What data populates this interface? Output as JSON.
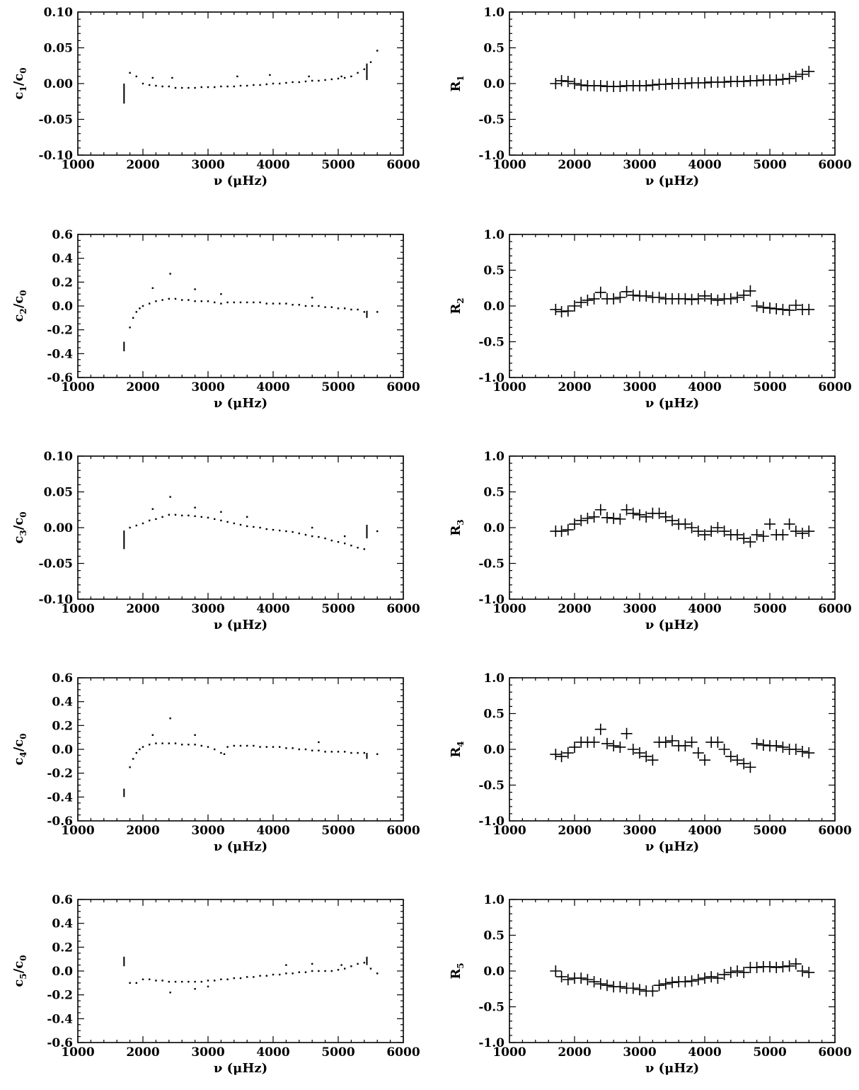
{
  "figure": {
    "layout": "5 rows x 2 columns of scatter panels"
  },
  "chart_data": [
    {
      "type": "scatter",
      "id": "c1",
      "ylabel_main": "c",
      "ylabel_sub": "1",
      "ylabel_rest": "/c",
      "ylabel_sub2": "0",
      "xlabel": "ν (μHz)",
      "xlim": [
        1000,
        6000
      ],
      "ylim": [
        -0.1,
        0.1
      ],
      "xticks": [
        "1000",
        "2000",
        "3000",
        "4000",
        "5000",
        "6000"
      ],
      "yticks": [
        -0.1,
        -0.05,
        0.0,
        0.05,
        0.1
      ],
      "ytick_labels": [
        "-0.10",
        "-0.05",
        "0.00",
        "0.05",
        "0.10"
      ],
      "marker": "dot",
      "x": [
        1800,
        1900,
        2000,
        2100,
        2200,
        2300,
        2400,
        2500,
        2600,
        2700,
        2800,
        2900,
        3000,
        3100,
        3200,
        3300,
        3400,
        3500,
        3600,
        3700,
        3800,
        3900,
        4000,
        4100,
        4200,
        4300,
        4400,
        4500,
        4600,
        4700,
        4800,
        4900,
        5000,
        5100,
        5200,
        5300,
        5400,
        5500,
        5600,
        2150,
        2450,
        3450,
        3950,
        4550,
        5050
      ],
      "y": [
        0.015,
        0.01,
        0.0,
        -0.002,
        -0.003,
        -0.004,
        -0.004,
        -0.006,
        -0.006,
        -0.006,
        -0.006,
        -0.005,
        -0.005,
        -0.005,
        -0.004,
        -0.004,
        -0.004,
        -0.003,
        -0.003,
        -0.002,
        -0.002,
        -0.001,
        0.0,
        0.0,
        0.001,
        0.002,
        0.002,
        0.003,
        0.004,
        0.004,
        0.005,
        0.006,
        0.007,
        0.008,
        0.01,
        0.015,
        0.02,
        0.03,
        0.046,
        0.008,
        0.008,
        0.01,
        0.012,
        0.01,
        0.01
      ],
      "bars": [
        {
          "x": 1710,
          "y0": -0.028,
          "y1": 0.0
        },
        {
          "x": 5440,
          "y0": 0.005,
          "y1": 0.028
        }
      ]
    },
    {
      "type": "scatter",
      "id": "R1",
      "ylabel_main": "R",
      "ylabel_sub": "1",
      "xlabel": "ν (μHz)",
      "xlim": [
        1000,
        6000
      ],
      "ylim": [
        -1.0,
        1.0
      ],
      "xticks": [
        "1000",
        "2000",
        "3000",
        "4000",
        "5000",
        "6000"
      ],
      "yticks": [
        -1.0,
        -0.5,
        0.0,
        0.5,
        1.0
      ],
      "ytick_labels": [
        "-1.0",
        "-0.5",
        "0.0",
        "0.5",
        "1.0"
      ],
      "marker": "plus",
      "x": [
        1710,
        1800,
        1900,
        2000,
        2100,
        2200,
        2300,
        2400,
        2500,
        2600,
        2700,
        2800,
        2900,
        3000,
        3100,
        3200,
        3300,
        3400,
        3500,
        3600,
        3700,
        3800,
        3900,
        4000,
        4100,
        4200,
        4300,
        4400,
        4500,
        4600,
        4700,
        4800,
        4900,
        5000,
        5100,
        5200,
        5300,
        5400,
        5500,
        5600
      ],
      "y": [
        0.0,
        0.04,
        0.03,
        0.0,
        -0.02,
        -0.03,
        -0.03,
        -0.03,
        -0.04,
        -0.04,
        -0.04,
        -0.03,
        -0.03,
        -0.03,
        -0.03,
        -0.02,
        -0.01,
        -0.01,
        0.0,
        0.0,
        0.0,
        0.01,
        0.01,
        0.01,
        0.02,
        0.02,
        0.02,
        0.03,
        0.03,
        0.03,
        0.04,
        0.04,
        0.05,
        0.05,
        0.05,
        0.06,
        0.07,
        0.1,
        0.13,
        0.17
      ]
    },
    {
      "type": "scatter",
      "id": "c2",
      "ylabel_main": "c",
      "ylabel_sub": "2",
      "ylabel_rest": "/c",
      "ylabel_sub2": "0",
      "xlabel": "ν (μHz)",
      "xlim": [
        1000,
        6000
      ],
      "ylim": [
        -0.6,
        0.6
      ],
      "xticks": [
        "1000",
        "2000",
        "3000",
        "4000",
        "5000",
        "6000"
      ],
      "yticks": [
        -0.6,
        -0.4,
        -0.2,
        0.0,
        0.2,
        0.4,
        0.6
      ],
      "ytick_labels": [
        "-0.6",
        "-0.4",
        "-0.2",
        "0.0",
        "0.2",
        "0.4",
        "0.6"
      ],
      "marker": "dot",
      "x": [
        1800,
        1850,
        1900,
        1950,
        2000,
        2100,
        2200,
        2300,
        2400,
        2500,
        2600,
        2700,
        2800,
        2900,
        3000,
        3100,
        3200,
        3300,
        3400,
        3500,
        3600,
        3700,
        3800,
        3900,
        4000,
        4100,
        4200,
        4300,
        4400,
        4500,
        4600,
        4700,
        4800,
        4900,
        5000,
        5100,
        5200,
        5300,
        5400,
        5600,
        2150,
        2420,
        2800,
        3200,
        4600
      ],
      "y": [
        -0.18,
        -0.1,
        -0.05,
        -0.02,
        0.0,
        0.02,
        0.04,
        0.05,
        0.06,
        0.06,
        0.05,
        0.05,
        0.04,
        0.04,
        0.04,
        0.03,
        0.02,
        0.03,
        0.03,
        0.03,
        0.03,
        0.03,
        0.03,
        0.02,
        0.02,
        0.02,
        0.02,
        0.01,
        0.01,
        0.0,
        0.0,
        0.0,
        -0.01,
        -0.01,
        -0.02,
        -0.02,
        -0.03,
        -0.03,
        -0.05,
        -0.05,
        0.15,
        0.27,
        0.14,
        0.1,
        0.07
      ],
      "bars": [
        {
          "x": 1710,
          "y0": -0.38,
          "y1": -0.3
        },
        {
          "x": 5440,
          "y0": -0.1,
          "y1": -0.04
        }
      ]
    },
    {
      "type": "scatter",
      "id": "R2",
      "ylabel_main": "R",
      "ylabel_sub": "2",
      "xlabel": "ν (μHz)",
      "xlim": [
        1000,
        6000
      ],
      "ylim": [
        -1.0,
        1.0
      ],
      "xticks": [
        "1000",
        "2000",
        "3000",
        "4000",
        "5000",
        "6000"
      ],
      "yticks": [
        -1.0,
        -0.5,
        0.0,
        0.5,
        1.0
      ],
      "ytick_labels": [
        "-1.0",
        "-0.5",
        "0.0",
        "0.5",
        "1.0"
      ],
      "marker": "plus",
      "x": [
        1710,
        1800,
        1900,
        2000,
        2100,
        2200,
        2300,
        2400,
        2500,
        2600,
        2700,
        2800,
        2900,
        3000,
        3100,
        3200,
        3300,
        3400,
        3500,
        3600,
        3700,
        3800,
        3900,
        4000,
        4100,
        4200,
        4300,
        4400,
        4500,
        4600,
        4700,
        4800,
        4900,
        5000,
        5100,
        5200,
        5300,
        5400,
        5500,
        5600
      ],
      "y": [
        -0.05,
        -0.08,
        -0.07,
        0.0,
        0.05,
        0.08,
        0.1,
        0.19,
        0.1,
        0.1,
        0.12,
        0.2,
        0.15,
        0.14,
        0.14,
        0.12,
        0.12,
        0.1,
        0.1,
        0.1,
        0.1,
        0.09,
        0.1,
        0.14,
        0.1,
        0.08,
        0.1,
        0.1,
        0.12,
        0.15,
        0.21,
        0.0,
        -0.02,
        -0.03,
        -0.04,
        -0.05,
        -0.06,
        0.01,
        -0.05,
        -0.05
      ]
    },
    {
      "type": "scatter",
      "id": "c3",
      "ylabel_main": "c",
      "ylabel_sub": "3",
      "ylabel_rest": "/c",
      "ylabel_sub2": "0",
      "xlabel": "ν (μHz)",
      "xlim": [
        1000,
        6000
      ],
      "ylim": [
        -0.1,
        0.1
      ],
      "xticks": [
        "1000",
        "2000",
        "3000",
        "4000",
        "5000",
        "6000"
      ],
      "yticks": [
        -0.1,
        -0.05,
        0.0,
        0.05,
        0.1
      ],
      "ytick_labels": [
        "-0.10",
        "-0.05",
        "0.00",
        "0.05",
        "0.10"
      ],
      "marker": "dot",
      "x": [
        1800,
        1900,
        2000,
        2100,
        2200,
        2300,
        2400,
        2500,
        2600,
        2700,
        2800,
        2900,
        3000,
        3100,
        3200,
        3300,
        3400,
        3500,
        3600,
        3700,
        3800,
        3900,
        4000,
        4100,
        4200,
        4300,
        4400,
        4500,
        4600,
        4700,
        4800,
        4900,
        5000,
        5100,
        5200,
        5300,
        5400,
        5600,
        2150,
        2420,
        2800,
        3200,
        3600,
        4600,
        5100
      ],
      "y": [
        0.0,
        0.003,
        0.006,
        0.01,
        0.012,
        0.015,
        0.018,
        0.018,
        0.017,
        0.017,
        0.016,
        0.015,
        0.014,
        0.012,
        0.01,
        0.008,
        0.006,
        0.004,
        0.002,
        0.001,
        0.0,
        -0.002,
        -0.003,
        -0.004,
        -0.005,
        -0.006,
        -0.008,
        -0.01,
        -0.012,
        -0.013,
        -0.015,
        -0.018,
        -0.02,
        -0.022,
        -0.025,
        -0.028,
        -0.03,
        -0.005,
        0.026,
        0.043,
        0.028,
        0.022,
        0.015,
        0.0,
        -0.012
      ],
      "bars": [
        {
          "x": 1710,
          "y0": -0.03,
          "y1": -0.004
        },
        {
          "x": 5440,
          "y0": -0.015,
          "y1": 0.004
        }
      ]
    },
    {
      "type": "scatter",
      "id": "R3",
      "ylabel_main": "R",
      "ylabel_sub": "3",
      "xlabel": "ν (μHz)",
      "xlim": [
        1000,
        6000
      ],
      "ylim": [
        -1.0,
        1.0
      ],
      "xticks": [
        "1000",
        "2000",
        "3000",
        "4000",
        "5000",
        "6000"
      ],
      "yticks": [
        -1.0,
        -0.5,
        0.0,
        0.5,
        1.0
      ],
      "ytick_labels": [
        "-1.0",
        "-0.5",
        "0.0",
        "0.5",
        "1.0"
      ],
      "marker": "plus",
      "x": [
        1710,
        1800,
        1900,
        2000,
        2100,
        2200,
        2300,
        2400,
        2500,
        2600,
        2700,
        2800,
        2900,
        3000,
        3100,
        3200,
        3300,
        3400,
        3500,
        3600,
        3700,
        3800,
        3900,
        4000,
        4100,
        4200,
        4300,
        4400,
        4500,
        4600,
        4700,
        4800,
        4900,
        5000,
        5100,
        5200,
        5300,
        5400,
        5500,
        5600
      ],
      "y": [
        -0.05,
        -0.05,
        -0.03,
        0.05,
        0.1,
        0.13,
        0.15,
        0.25,
        0.14,
        0.13,
        0.12,
        0.25,
        0.2,
        0.18,
        0.15,
        0.2,
        0.2,
        0.15,
        0.1,
        0.05,
        0.05,
        0.0,
        -0.05,
        -0.1,
        -0.05,
        0.0,
        -0.05,
        -0.1,
        -0.1,
        -0.15,
        -0.2,
        -0.1,
        -0.12,
        0.05,
        -0.1,
        -0.1,
        0.05,
        -0.05,
        -0.08,
        -0.05
      ]
    },
    {
      "type": "scatter",
      "id": "c4",
      "ylabel_main": "c",
      "ylabel_sub": "4",
      "ylabel_rest": "/c",
      "ylabel_sub2": "0",
      "xlabel": "ν (μHz)",
      "xlim": [
        1000,
        6000
      ],
      "ylim": [
        -0.6,
        0.6
      ],
      "xticks": [
        "1000",
        "2000",
        "3000",
        "4000",
        "5000",
        "6000"
      ],
      "yticks": [
        -0.6,
        -0.4,
        -0.2,
        0.0,
        0.2,
        0.4,
        0.6
      ],
      "ytick_labels": [
        "-0.6",
        "-0.4",
        "-0.2",
        "0.0",
        "0.2",
        "0.4",
        "0.6"
      ],
      "marker": "dot",
      "x": [
        1800,
        1850,
        1900,
        1950,
        2000,
        2100,
        2200,
        2300,
        2400,
        2500,
        2600,
        2700,
        2800,
        2900,
        3000,
        3100,
        3200,
        3250,
        3300,
        3400,
        3500,
        3600,
        3700,
        3800,
        3900,
        4000,
        4100,
        4200,
        4300,
        4400,
        4500,
        4600,
        4700,
        4800,
        4900,
        5000,
        5100,
        5200,
        5300,
        5400,
        5600,
        2150,
        2420,
        2800,
        4700
      ],
      "y": [
        -0.15,
        -0.08,
        -0.03,
        0.0,
        0.02,
        0.04,
        0.05,
        0.05,
        0.05,
        0.05,
        0.04,
        0.04,
        0.04,
        0.03,
        0.02,
        0.0,
        -0.03,
        -0.04,
        0.02,
        0.03,
        0.03,
        0.03,
        0.03,
        0.02,
        0.02,
        0.02,
        0.02,
        0.01,
        0.01,
        0.0,
        0.0,
        -0.01,
        -0.01,
        -0.02,
        -0.02,
        -0.02,
        -0.02,
        -0.03,
        -0.03,
        -0.03,
        -0.04,
        0.12,
        0.26,
        0.12,
        0.06
      ],
      "bars": [
        {
          "x": 1710,
          "y0": -0.4,
          "y1": -0.33
        },
        {
          "x": 5440,
          "y0": -0.08,
          "y1": -0.03
        }
      ]
    },
    {
      "type": "scatter",
      "id": "R4",
      "ylabel_main": "R",
      "ylabel_sub": "4",
      "xlabel": "ν (μHz)",
      "xlim": [
        1000,
        6000
      ],
      "ylim": [
        -1.0,
        1.0
      ],
      "xticks": [
        "1000",
        "2000",
        "3000",
        "4000",
        "5000",
        "6000"
      ],
      "yticks": [
        -1.0,
        -0.5,
        0.0,
        0.5,
        1.0
      ],
      "ytick_labels": [
        "-1.0",
        "-0.5",
        "0.0",
        "0.5",
        "1.0"
      ],
      "marker": "plus",
      "x": [
        1710,
        1800,
        1900,
        2000,
        2100,
        2200,
        2300,
        2400,
        2500,
        2600,
        2700,
        2800,
        2900,
        3000,
        3100,
        3200,
        3300,
        3400,
        3500,
        3600,
        3700,
        3800,
        3900,
        4000,
        4100,
        4200,
        4300,
        4400,
        4500,
        4600,
        4700,
        4800,
        4900,
        5000,
        5100,
        5200,
        5300,
        5400,
        5500,
        5600
      ],
      "y": [
        -0.07,
        -0.1,
        -0.05,
        0.03,
        0.1,
        0.1,
        0.1,
        0.28,
        0.08,
        0.05,
        0.03,
        0.22,
        0.0,
        -0.05,
        -0.1,
        -0.15,
        0.1,
        0.1,
        0.12,
        0.05,
        0.05,
        0.1,
        -0.05,
        -0.15,
        0.1,
        0.1,
        0.0,
        -0.1,
        -0.15,
        -0.2,
        -0.25,
        0.08,
        0.06,
        0.05,
        0.05,
        0.03,
        0.0,
        0.0,
        -0.03,
        -0.05
      ]
    },
    {
      "type": "scatter",
      "id": "c5",
      "ylabel_main": "c",
      "ylabel_sub": "5",
      "ylabel_rest": "/c",
      "ylabel_sub2": "0",
      "xlabel": "ν (μHz)",
      "xlim": [
        1000,
        6000
      ],
      "ylim": [
        -0.6,
        0.6
      ],
      "xticks": [
        "1000",
        "2000",
        "3000",
        "4000",
        "5000",
        "6000"
      ],
      "yticks": [
        -0.6,
        -0.4,
        -0.2,
        0.0,
        0.2,
        0.4,
        0.6
      ],
      "ytick_labels": [
        "-0.6",
        "-0.4",
        "-0.2",
        "0.0",
        "0.2",
        "0.4",
        "0.6"
      ],
      "marker": "dot",
      "x": [
        1800,
        1900,
        2000,
        2100,
        2200,
        2300,
        2400,
        2500,
        2600,
        2700,
        2800,
        2900,
        3000,
        3100,
        3200,
        3300,
        3400,
        3500,
        3600,
        3700,
        3800,
        3900,
        4000,
        4100,
        4200,
        4300,
        4400,
        4500,
        4600,
        4700,
        4800,
        4900,
        5000,
        5100,
        5200,
        5300,
        5400,
        5500,
        5600,
        2420,
        2800,
        3000,
        4200,
        4600,
        5050
      ],
      "y": [
        -0.1,
        -0.1,
        -0.07,
        -0.07,
        -0.08,
        -0.08,
        -0.09,
        -0.09,
        -0.09,
        -0.09,
        -0.09,
        -0.09,
        -0.08,
        -0.08,
        -0.07,
        -0.07,
        -0.06,
        -0.06,
        -0.05,
        -0.05,
        -0.04,
        -0.04,
        -0.03,
        -0.03,
        -0.02,
        -0.02,
        -0.01,
        -0.01,
        0.0,
        0.0,
        0.0,
        0.0,
        0.01,
        0.02,
        0.04,
        0.06,
        0.07,
        0.02,
        -0.02,
        -0.18,
        -0.15,
        -0.13,
        0.05,
        0.06,
        0.05
      ],
      "bars": [
        {
          "x": 1710,
          "y0": 0.04,
          "y1": 0.12
        },
        {
          "x": 5440,
          "y0": 0.05,
          "y1": 0.12
        }
      ]
    },
    {
      "type": "scatter",
      "id": "R5",
      "ylabel_main": "R",
      "ylabel_sub": "5",
      "xlabel": "ν (μHz)",
      "xlim": [
        1000,
        6000
      ],
      "ylim": [
        -1.0,
        1.0
      ],
      "xticks": [
        "1000",
        "2000",
        "3000",
        "4000",
        "5000",
        "6000"
      ],
      "yticks": [
        -1.0,
        -0.5,
        0.0,
        0.5,
        1.0
      ],
      "ytick_labels": [
        "-1.0",
        "-0.5",
        "0.0",
        "0.5",
        "1.0"
      ],
      "marker": "plus",
      "x": [
        1710,
        1800,
        1900,
        2000,
        2100,
        2200,
        2300,
        2400,
        2500,
        2600,
        2700,
        2800,
        2900,
        3000,
        3100,
        3200,
        3300,
        3400,
        3500,
        3600,
        3700,
        3800,
        3900,
        4000,
        4100,
        4200,
        4300,
        4400,
        4500,
        4600,
        4700,
        4800,
        4900,
        5000,
        5100,
        5200,
        5300,
        5400,
        5500,
        5600
      ],
      "y": [
        0.0,
        -0.08,
        -0.12,
        -0.1,
        -0.1,
        -0.12,
        -0.15,
        -0.18,
        -0.2,
        -0.22,
        -0.22,
        -0.24,
        -0.24,
        -0.26,
        -0.28,
        -0.28,
        -0.2,
        -0.18,
        -0.16,
        -0.15,
        -0.15,
        -0.14,
        -0.12,
        -0.1,
        -0.08,
        -0.1,
        -0.05,
        -0.02,
        0.0,
        -0.02,
        0.05,
        0.05,
        0.06,
        0.06,
        0.05,
        0.06,
        0.07,
        0.1,
        0.0,
        -0.02
      ]
    }
  ]
}
